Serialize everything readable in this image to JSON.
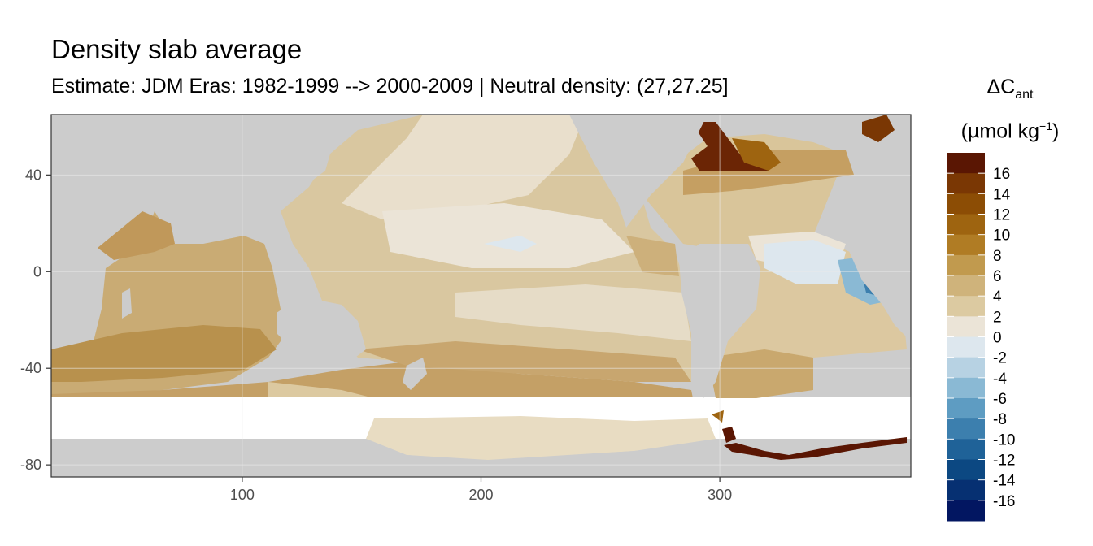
{
  "title": "Density slab average",
  "subtitle": "Estimate: JDM Eras: 1982-1999 --> 2000-2009 | Neutral density: (27,27.25]",
  "legend": {
    "symbol": "ΔC",
    "subscript": "ant",
    "unit_open": "(µmol kg",
    "unit_sup": "−1",
    "unit_close": ")",
    "labels": [
      "16",
      "14",
      "12",
      "10",
      "8",
      "6",
      "4",
      "2",
      "0",
      "-2",
      "-4",
      "-6",
      "-8",
      "-10",
      "-12",
      "-14",
      "-16"
    ],
    "colors": [
      "#5a1603",
      "#7a3704",
      "#8c4d05",
      "#9e6410",
      "#b07c24",
      "#c19a4e",
      "#cfb37b",
      "#dccaa1",
      "#ebe4d7",
      "#dde7ee",
      "#b7d2e3",
      "#8ab9d4",
      "#5e9cc2",
      "#3c7fae",
      "#1f6298",
      "#0c4882",
      "#063072",
      "#021661"
    ]
  },
  "axes": {
    "x_ticks": [
      "100",
      "200",
      "300"
    ],
    "y_ticks": [
      "40",
      "0",
      "-40",
      "-80"
    ]
  },
  "chart_data": {
    "type": "heatmap",
    "title": "Density slab average",
    "subtitle": "Estimate: JDM Eras: 1982-1999 --> 2000-2009 | Neutral density: (27,27.25]",
    "xlim": [
      20,
      380
    ],
    "ylim": [
      -85,
      65
    ],
    "x_ticks": [
      100,
      200,
      300
    ],
    "y_ticks": [
      40,
      0,
      -40,
      -80
    ],
    "legend_placement": "right",
    "grid": true,
    "colorbar_range": [
      -18,
      18
    ],
    "colorbar_step": 2,
    "regions": [
      {
        "lon": [
          20,
          100
        ],
        "lat": [
          -50,
          30
        ],
        "value": 5
      },
      {
        "lon": [
          100,
          160
        ],
        "lat": [
          -55,
          -35
        ],
        "value": 7
      },
      {
        "lon": [
          160,
          240
        ],
        "lat": [
          -58,
          -40
        ],
        "value": 7
      },
      {
        "lon": [
          120,
          250
        ],
        "lat": [
          -30,
          20
        ],
        "value": 3
      },
      {
        "lon": [
          160,
          280
        ],
        "lat": [
          20,
          60
        ],
        "value": 3
      },
      {
        "lon": [
          190,
          230
        ],
        "lat": [
          5,
          15
        ],
        "value": -1
      },
      {
        "lon": [
          275,
          325
        ],
        "lat": [
          40,
          62
        ],
        "value": 16
      },
      {
        "lon": [
          310,
          360
        ],
        "lat": [
          -25,
          10
        ],
        "value": 1
      },
      {
        "lon": [
          355,
          370
        ],
        "lat": [
          -10,
          8
        ],
        "value": -8
      },
      {
        "lon": [
          300,
          380
        ],
        "lat": [
          -78,
          -68
        ],
        "value": 16
      },
      {
        "lon": [
          20,
          380
        ],
        "lat": [
          -68,
          -62
        ],
        "value": 1
      }
    ]
  }
}
